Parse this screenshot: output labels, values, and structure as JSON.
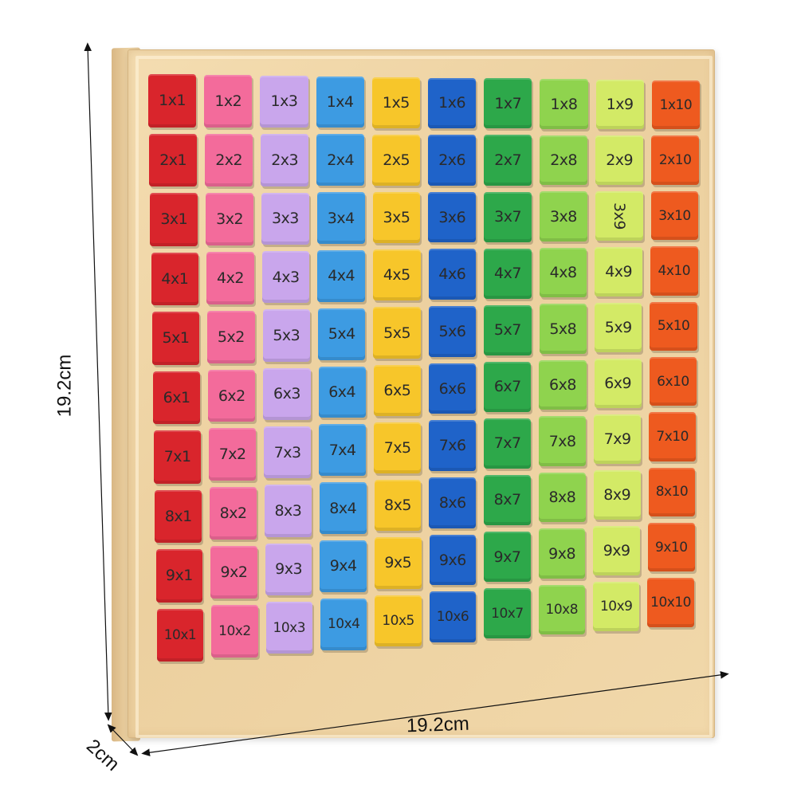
{
  "dimensions": {
    "height_label": "19.2cm",
    "width_label": "19.2cm",
    "depth_label": "2cm"
  },
  "column_colors": [
    "#d9252c",
    "#f36b9b",
    "#c9a6ec",
    "#3d9be2",
    "#f7c62a",
    "#1f63c9",
    "#2da84a",
    "#8fd34e",
    "#d3ea66",
    "#ee5a1f"
  ],
  "tiles": [
    [
      "1x1",
      "1x2",
      "1x3",
      "1x4",
      "1x5",
      "1x6",
      "1x7",
      "1x8",
      "1x9",
      "1x10"
    ],
    [
      "2x1",
      "2x2",
      "2x3",
      "2x4",
      "2x5",
      "2x6",
      "2x7",
      "2x8",
      "2x9",
      "2x10"
    ],
    [
      "3x1",
      "3x2",
      "3x3",
      "3x4",
      "3x5",
      "3x6",
      "3x7",
      "3x8",
      "3x9",
      "3x10"
    ],
    [
      "4x1",
      "4x2",
      "4x3",
      "4x4",
      "4x5",
      "4x6",
      "4x7",
      "4x8",
      "4x9",
      "4x10"
    ],
    [
      "5x1",
      "5x2",
      "5x3",
      "5x4",
      "5x5",
      "5x6",
      "5x7",
      "5x8",
      "5x9",
      "5x10"
    ],
    [
      "6x1",
      "6x2",
      "6x3",
      "6x4",
      "6x5",
      "6x6",
      "6x7",
      "6x8",
      "6x9",
      "6x10"
    ],
    [
      "7x1",
      "7x2",
      "7x3",
      "7x4",
      "7x5",
      "7x6",
      "7x7",
      "7x8",
      "7x9",
      "7x10"
    ],
    [
      "8x1",
      "8x2",
      "8x3",
      "8x4",
      "8x5",
      "8x6",
      "8x7",
      "8x8",
      "8x9",
      "8x10"
    ],
    [
      "9x1",
      "9x2",
      "9x3",
      "9x4",
      "9x5",
      "9x6",
      "9x7",
      "9x8",
      "9x9",
      "9x10"
    ],
    [
      "10x1",
      "10x2",
      "10x3",
      "10x4",
      "10x5",
      "10x6",
      "10x7",
      "10x8",
      "10x9",
      "10x10"
    ]
  ]
}
